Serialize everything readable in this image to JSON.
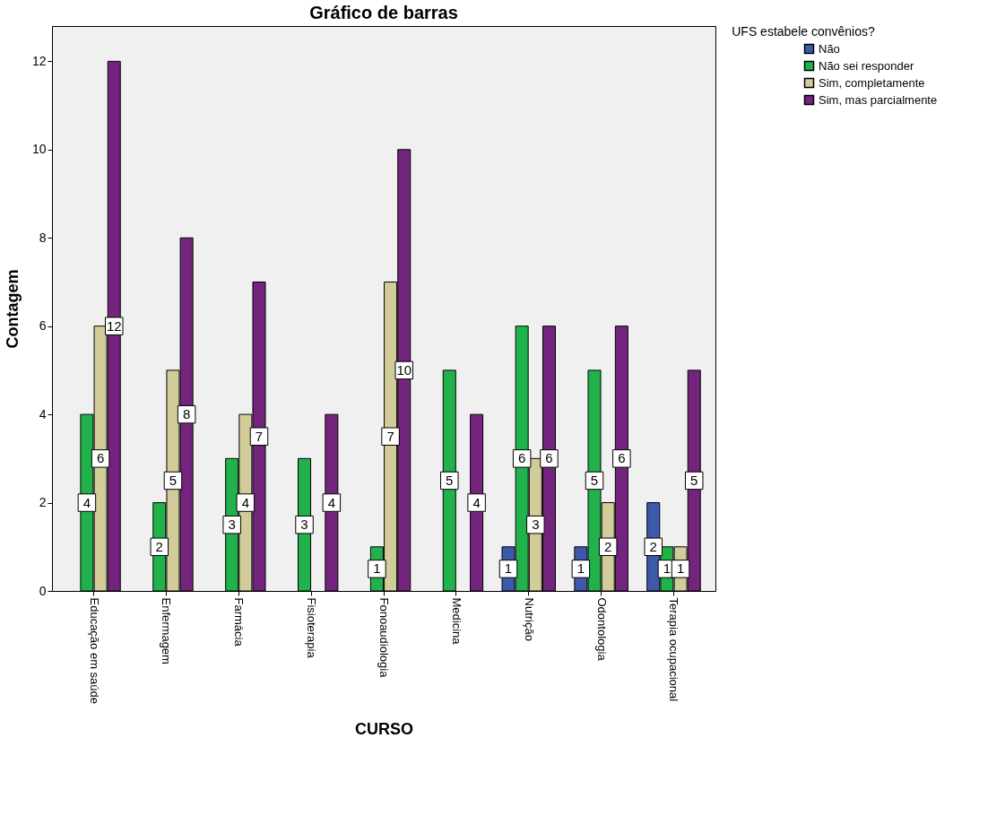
{
  "chart_data": {
    "type": "bar",
    "title": "Gráfico de barras",
    "xlabel": "CURSO",
    "ylabel": "Contagem",
    "legend_title": "UFS estabele convênios?",
    "categories": [
      "Educação em saúde",
      "Enfermagem",
      "Farmácia",
      "Fisioterapia",
      "Fonoaudiologia",
      "Medicina",
      "Nutrição",
      "Odontologia",
      "Terapia ocupacional"
    ],
    "series": [
      {
        "name": "Não",
        "color": "#3e58ac",
        "values": [
          null,
          null,
          null,
          null,
          null,
          null,
          1,
          1,
          2
        ]
      },
      {
        "name": "Não sei responder",
        "color": "#21b24b",
        "values": [
          4,
          2,
          3,
          3,
          1,
          5,
          6,
          5,
          1
        ]
      },
      {
        "name": "Sim, completamente",
        "color": "#d2cc9a",
        "values": [
          6,
          5,
          4,
          null,
          7,
          null,
          3,
          2,
          1
        ]
      },
      {
        "name": "Sim, mas parcialmente",
        "color": "#73257e",
        "values": [
          12,
          8,
          7,
          4,
          10,
          4,
          6,
          6,
          5
        ]
      }
    ],
    "ylim": [
      0,
      12.8
    ],
    "yticks": [
      0,
      2,
      4,
      6,
      8,
      10,
      12
    ],
    "grid": false,
    "legend": "top right",
    "data_labels": true
  }
}
